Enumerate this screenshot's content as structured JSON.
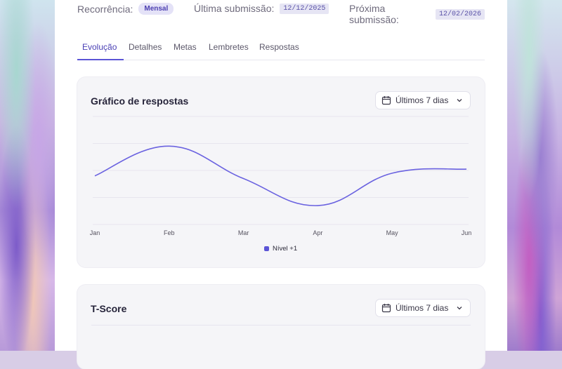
{
  "meta": {
    "recurrence_label": "Recorrência:",
    "recurrence_value": "Mensal",
    "last_label": "Última submissão:",
    "last_value": "12/12/2025",
    "next_label": "Próxima submissão:",
    "next_value": "12/02/2026"
  },
  "tabs": [
    {
      "label": "Evolução",
      "active": true
    },
    {
      "label": "Detalhes"
    },
    {
      "label": "Metas"
    },
    {
      "label": "Lembretes"
    },
    {
      "label": "Respostas"
    }
  ],
  "card1": {
    "title": "Gráfico de respostas",
    "range": "Últimos 7 dias"
  },
  "card2": {
    "title": "T-Score",
    "range": "Últimos 7 dias"
  },
  "colors": {
    "accent": "#5b54d6",
    "line": "#6a62e0"
  },
  "icons": [
    "calendar-icon",
    "chevron-down-icon"
  ],
  "chart_data": {
    "type": "line",
    "categories": [
      "Jan",
      "Feb",
      "Mar",
      "Apr",
      "May",
      "Jun"
    ],
    "series": [
      {
        "name": "Nível +1",
        "values": [
          3.6,
          5.8,
          3.4,
          1.4,
          3.8,
          4.1
        ]
      }
    ],
    "ylim": [
      0,
      8
    ],
    "grid": true,
    "legend": "bottom-center"
  }
}
